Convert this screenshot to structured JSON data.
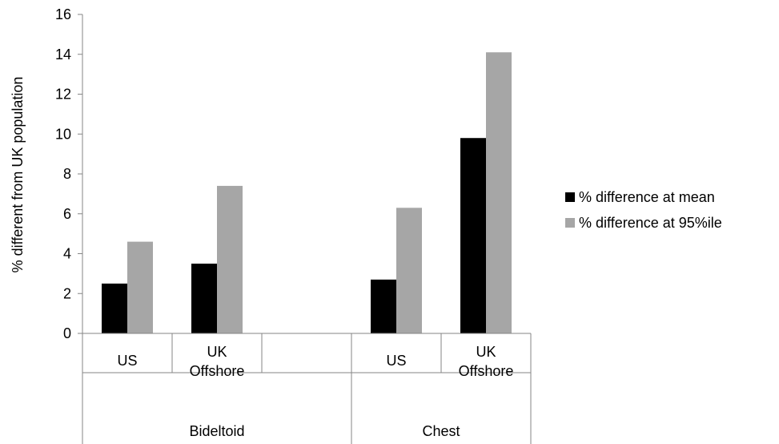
{
  "chart_data": {
    "type": "bar",
    "title": "",
    "xlabel": "",
    "ylabel": "% different from UK population",
    "ylim": [
      0,
      16
    ],
    "yticks": [
      0,
      2,
      4,
      6,
      8,
      10,
      12,
      14,
      16
    ],
    "grid": false,
    "legend_position": "right",
    "groups": [
      {
        "label": "Bideltoid",
        "categories": [
          "US",
          "UK Offshore",
          ""
        ]
      },
      {
        "label": "Chest",
        "categories": [
          "US",
          "UK Offshore"
        ]
      }
    ],
    "categories": [
      "US",
      "UK Offshore",
      "",
      "US",
      "UK Offshore"
    ],
    "series": [
      {
        "name": "% difference at mean",
        "color": "#000000",
        "values": [
          2.5,
          3.5,
          null,
          2.7,
          9.8
        ]
      },
      {
        "name": "% difference at 95%ile",
        "color": "#a6a6a6",
        "values": [
          4.6,
          7.4,
          null,
          6.3,
          14.1
        ]
      }
    ]
  }
}
